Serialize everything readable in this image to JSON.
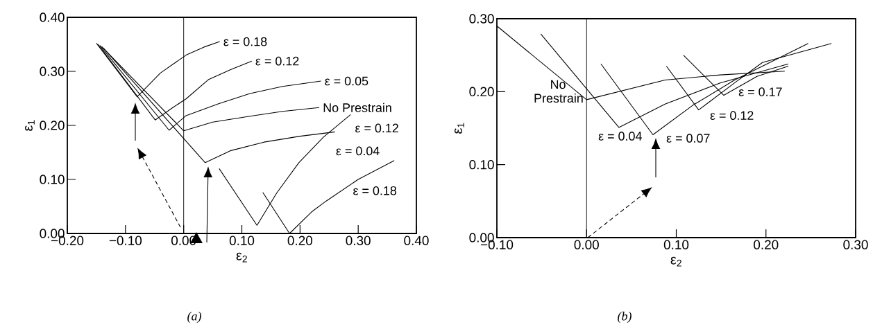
{
  "chart_data": [
    {
      "type": "line",
      "xlabel": "ε$_{2}$",
      "ylabel": "ε$_{1}$",
      "xlim": [
        -0.2,
        0.4
      ],
      "ylim": [
        0,
        0.4
      ],
      "xticks": [
        {
          "value": -0.2,
          "label": "−0.20"
        },
        {
          "value": -0.1,
          "label": "−0.10"
        },
        {
          "value": 0,
          "label": "0.00"
        },
        {
          "value": 0.1,
          "label": "0.10"
        },
        {
          "value": 0.2,
          "label": "0.20"
        },
        {
          "value": 0.3,
          "label": "0.30"
        },
        {
          "value": 0.4,
          "label": "0.40"
        }
      ],
      "yticks": [
        {
          "value": 0,
          "label": "0.00"
        },
        {
          "value": 0.1,
          "label": "0.10"
        },
        {
          "value": 0.2,
          "label": "0.20"
        },
        {
          "value": 0.3,
          "label": "0.30"
        },
        {
          "value": 0.4,
          "label": "0.40"
        }
      ],
      "ref_lines": [
        {
          "axis": "x",
          "value": 0
        }
      ],
      "annotations": [
        "(a)"
      ],
      "series": [
        {
          "name": "ε = 0.18",
          "color": "#000000",
          "line_style": "solid",
          "x": [
            -0.15,
            -0.08,
            -0.04,
            0.004,
            0.035,
            0.062
          ],
          "values": [
            0.352,
            0.253,
            0.297,
            0.33,
            0.345,
            0.355
          ]
        },
        {
          "name": "ε = 0.12",
          "color": "#000000",
          "line_style": "solid",
          "x": [
            -0.147,
            -0.049,
            -0.02,
            0.004,
            0.043,
            0.08,
            0.117
          ],
          "values": [
            0.35,
            0.21,
            0.232,
            0.249,
            0.285,
            0.303,
            0.319
          ]
        },
        {
          "name": "ε = 0.05",
          "color": "#000000",
          "line_style": "solid",
          "x": [
            -0.144,
            -0.025,
            0.004,
            0.06,
            0.114,
            0.17,
            0.236
          ],
          "values": [
            0.348,
            0.191,
            0.218,
            0.24,
            0.259,
            0.272,
            0.282
          ]
        },
        {
          "name": "No Prestrain",
          "color": "#000000",
          "line_style": "solid",
          "x": [
            -0.141,
            0.0,
            0.05,
            0.114,
            0.17,
            0.233
          ],
          "values": [
            0.346,
            0.19,
            0.206,
            0.217,
            0.226,
            0.233
          ]
        },
        {
          "name": "ε = 0.04",
          "color": "#000000",
          "line_style": "solid",
          "x": [
            -0.138,
            0.037,
            0.08,
            0.138,
            0.2,
            0.26
          ],
          "values": [
            0.343,
            0.131,
            0.153,
            0.169,
            0.18,
            0.188
          ]
        },
        {
          "name": "ε = 0.12",
          "color": "#000000",
          "line_style": "solid",
          "x": [
            0.061,
            0.126,
            0.16,
            0.198,
            0.24,
            0.287
          ],
          "values": [
            0.12,
            0.015,
            0.075,
            0.131,
            0.178,
            0.22
          ]
        },
        {
          "name": "ε = 0.18",
          "color": "#000000",
          "line_style": "solid",
          "x": [
            0.136,
            0.182,
            0.22,
            0.245,
            0.3,
            0.362
          ],
          "values": [
            0.076,
            0.0,
            0.04,
            0.06,
            0.1,
            0.135
          ]
        }
      ]
    },
    {
      "type": "line",
      "xlabel": "ε$_{2}$",
      "ylabel": "ε$_{1}$",
      "xlim": [
        -0.1,
        0.3
      ],
      "ylim": [
        0,
        0.3
      ],
      "xticks": [
        {
          "value": -0.1,
          "label": "−0.10"
        },
        {
          "value": 0,
          "label": "0.00"
        },
        {
          "value": 0.1,
          "label": "0.10"
        },
        {
          "value": 0.2,
          "label": "0.20"
        },
        {
          "value": 0.3,
          "label": "0.30"
        }
      ],
      "yticks": [
        {
          "value": 0,
          "label": "0.00"
        },
        {
          "value": 0.1,
          "label": "0.10"
        },
        {
          "value": 0.2,
          "label": "0.20"
        },
        {
          "value": 0.3,
          "label": "0.30"
        }
      ],
      "ref_lines": [
        {
          "axis": "x",
          "value": 0
        }
      ],
      "annotations": [
        "(b)"
      ],
      "series": [
        {
          "name": "No Prestrain",
          "color": "#000000",
          "line_style": "solid",
          "x": [
            -0.1,
            0.0,
            0.0875,
            0.149,
            0.221
          ],
          "values": [
            0.29,
            0.189,
            0.216,
            0.223,
            0.228
          ]
        },
        {
          "name": "ε = 0.04",
          "color": "#000000",
          "line_style": "solid",
          "x": [
            -0.051,
            0.036,
            0.0875,
            0.149,
            0.225
          ],
          "values": [
            0.279,
            0.151,
            0.183,
            0.212,
            0.238
          ]
        },
        {
          "name": "ε = 0.07",
          "color": "#000000",
          "line_style": "solid",
          "x": [
            0.016,
            0.074,
            0.118,
            0.165,
            0.247
          ],
          "values": [
            0.238,
            0.141,
            0.181,
            0.216,
            0.266
          ]
        },
        {
          "name": "ε = 0.12",
          "color": "#000000",
          "line_style": "solid",
          "x": [
            0.089,
            0.125,
            0.165,
            0.196,
            0.273
          ],
          "values": [
            0.235,
            0.175,
            0.212,
            0.24,
            0.266
          ]
        },
        {
          "name": "ε = 0.17",
          "color": "#000000",
          "line_style": "solid",
          "x": [
            0.108,
            0.153,
            0.19,
            0.225
          ],
          "values": [
            0.25,
            0.195,
            0.221,
            0.235
          ]
        }
      ]
    }
  ]
}
